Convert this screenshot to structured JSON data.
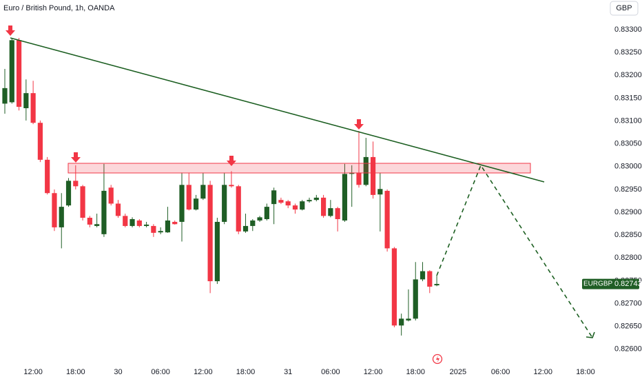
{
  "chart_data": {
    "type": "candlestick",
    "title": "Euro / British Pound, 1h, OANDA",
    "currency": "GBP",
    "symbol": "EURGBP",
    "last_price": 0.82743,
    "up_color": "#1f5e25",
    "down_color": "#f23645",
    "categories": [
      null,
      null,
      null,
      null,
      "12:00",
      null,
      null,
      null,
      null,
      null,
      "18:00",
      null,
      null,
      null,
      null,
      null,
      "30",
      null,
      null,
      null,
      null,
      null,
      "06:00",
      null,
      null,
      null,
      null,
      null,
      "12:00",
      null,
      null,
      null,
      null,
      null,
      "18:00",
      null,
      null,
      null,
      null,
      null,
      "31",
      null,
      null,
      null,
      null,
      null,
      "06:00",
      null,
      null,
      null,
      null,
      null,
      "12:00",
      null,
      null,
      null,
      null,
      null,
      "18:00",
      null,
      null,
      null,
      null,
      null,
      "2025",
      null,
      null,
      null,
      null,
      null,
      "06:00",
      null,
      null,
      null,
      null,
      null,
      "12:00",
      null,
      null,
      null,
      null,
      null,
      "18:00",
      null,
      null,
      null
    ],
    "open": [
      0.83138,
      0.83141,
      0.83277,
      0.83128,
      0.83161,
      0.83096,
      0.83015,
      0.82942,
      0.82867,
      0.82915,
      0.82969,
      0.82957,
      0.82888,
      0.8287,
      0.82852,
      0.82954,
      0.82919,
      0.82892,
      0.8287,
      0.82882,
      0.8287,
      0.8287,
      0.82856,
      0.82856,
      0.82879,
      0.82879,
      0.8296,
      0.82906,
      0.8293,
      0.8296,
      0.82749,
      0.82879,
      0.8296,
      0.82957,
      0.82858,
      0.8287,
      0.82882,
      0.82885,
      0.82918,
      0.82927,
      0.82924,
      0.82915,
      0.82906,
      0.82924,
      0.82927,
      0.82932,
      0.82892,
      0.82909,
      0.82882,
      0.82984,
      0.82987,
      0.8296,
      0.83021,
      0.82939,
      0.82947,
      0.82821,
      0.82652,
      0.82663,
      0.82667,
      0.82753,
      0.82771,
      0.8274,
      null,
      null,
      null,
      null,
      null,
      null,
      null,
      null,
      null,
      null,
      null,
      null,
      null,
      null,
      null,
      null,
      null,
      null,
      null,
      null,
      null,
      null,
      null,
      null
    ],
    "high": [
      0.83214,
      0.83282,
      0.83282,
      0.83191,
      0.83188,
      0.83101,
      0.83021,
      0.8295,
      0.82942,
      0.82975,
      0.83003,
      0.8296,
      0.82892,
      0.82897,
      0.83006,
      0.8296,
      0.82927,
      0.82897,
      0.82889,
      0.82885,
      0.82879,
      0.82874,
      0.82867,
      0.82912,
      0.82882,
      0.82987,
      0.82987,
      0.82938,
      0.82987,
      0.82969,
      0.82888,
      0.82987,
      0.8299,
      0.8296,
      0.82897,
      0.82885,
      0.82892,
      0.82919,
      0.82954,
      0.82932,
      0.82927,
      0.82919,
      0.82927,
      0.82932,
      0.82938,
      0.82938,
      0.82927,
      0.82912,
      0.83006,
      0.83003,
      0.83078,
      0.83063,
      0.83055,
      0.82987,
      0.8295,
      0.82824,
      0.82678,
      0.82731,
      0.82791,
      0.82791,
      0.82773,
      0.82761,
      null,
      null,
      null,
      null,
      null,
      null,
      null,
      null,
      null,
      null,
      null,
      null,
      null,
      null,
      null,
      null,
      null,
      null,
      null,
      null,
      null,
      null,
      null,
      null
    ],
    "low": [
      0.83116,
      0.83138,
      0.83123,
      0.83101,
      0.83093,
      0.8301,
      0.82939,
      0.82859,
      0.82821,
      0.82912,
      0.8295,
      0.82882,
      0.82867,
      0.82867,
      0.82846,
      0.82915,
      0.82888,
      0.82867,
      0.82867,
      0.82867,
      0.82867,
      0.82846,
      0.82852,
      0.82855,
      0.82873,
      0.82836,
      0.82904,
      0.82904,
      0.82927,
      0.82723,
      0.82743,
      0.82874,
      0.82954,
      0.82852,
      0.82855,
      0.82859,
      0.82879,
      0.82882,
      0.82874,
      0.82918,
      0.82909,
      0.82897,
      0.82904,
      0.82921,
      0.82924,
      0.82888,
      0.82889,
      0.82858,
      0.82879,
      0.82912,
      0.82954,
      0.82957,
      0.8293,
      0.82858,
      0.82814,
      0.82648,
      0.8263,
      0.82661,
      0.82663,
      0.82749,
      0.82723,
      0.82738,
      null,
      null,
      null,
      null,
      null,
      null,
      null,
      null,
      null,
      null,
      null,
      null,
      null,
      null,
      null,
      null,
      null,
      null,
      null,
      null,
      null,
      null,
      null,
      null
    ],
    "close": [
      0.83172,
      0.83277,
      0.83131,
      0.83161,
      0.83096,
      0.83015,
      0.82942,
      0.82867,
      0.82912,
      0.82969,
      0.82957,
      0.82888,
      0.82873,
      0.82874,
      0.82947,
      0.82919,
      0.82892,
      0.8287,
      0.82885,
      0.8287,
      0.82873,
      0.82855,
      0.82859,
      0.82882,
      0.82874,
      0.8296,
      0.82906,
      0.8293,
      0.8296,
      0.82749,
      0.82879,
      0.8296,
      0.82957,
      0.82858,
      0.8287,
      0.82882,
      0.82889,
      0.82912,
      0.82948,
      0.82921,
      0.82915,
      0.82906,
      0.82924,
      0.82927,
      0.82932,
      0.82892,
      0.82909,
      0.82885,
      0.82984,
      0.82987,
      0.8296,
      0.83021,
      0.82938,
      0.82951,
      0.82821,
      0.82652,
      0.82667,
      0.82667,
      0.82753,
      0.82771,
      0.82737,
      0.82743,
      null,
      null,
      null,
      null,
      null,
      null,
      null,
      null,
      null,
      null,
      null,
      null,
      null,
      null,
      null,
      null,
      null,
      null,
      null,
      null,
      null,
      null,
      null,
      null
    ],
    "ylim": [
      0.82568,
      0.83365
    ],
    "yticks": [
      {
        "value": 0.826,
        "label": "0.82600"
      },
      {
        "value": 0.8265,
        "label": "0.82650"
      },
      {
        "value": 0.827,
        "label": "0.82700"
      },
      {
        "value": 0.8275,
        "label": "0.82750"
      },
      {
        "value": 0.828,
        "label": "0.82800"
      },
      {
        "value": 0.8285,
        "label": "0.82850"
      },
      {
        "value": 0.829,
        "label": "0.82900"
      },
      {
        "value": 0.8295,
        "label": "0.82950"
      },
      {
        "value": 0.83,
        "label": "0.83000"
      },
      {
        "value": 0.8305,
        "label": "0.83050"
      },
      {
        "value": 0.831,
        "label": "0.83100"
      },
      {
        "value": 0.8315,
        "label": "0.83150"
      },
      {
        "value": 0.832,
        "label": "0.83200"
      },
      {
        "value": 0.8325,
        "label": "0.83250"
      },
      {
        "value": 0.833,
        "label": "0.83300"
      }
    ]
  }
}
